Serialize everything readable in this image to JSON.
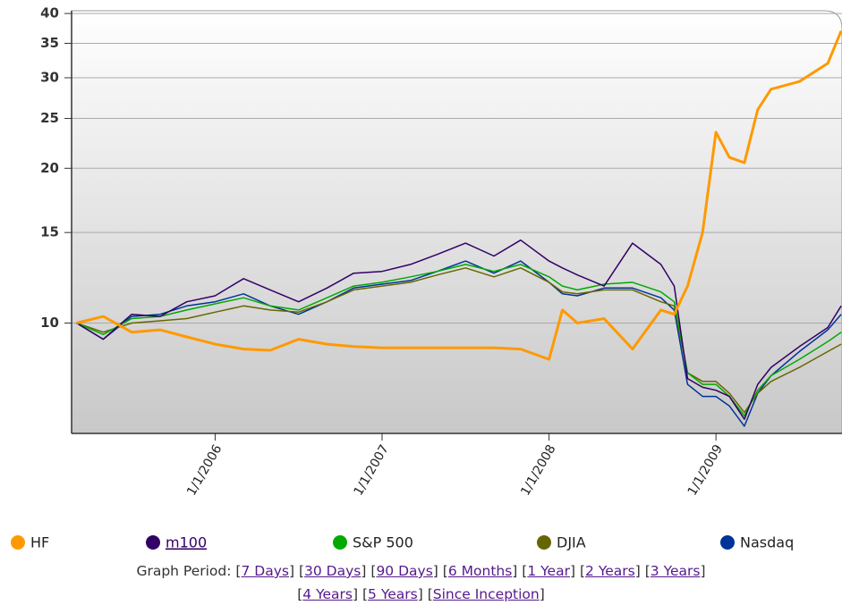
{
  "chart_data": {
    "type": "line",
    "log_scale": true,
    "grid": true,
    "x": [
      2005.17,
      2005.33,
      2005.5,
      2005.67,
      2005.83,
      2006.0,
      2006.17,
      2006.33,
      2006.5,
      2006.67,
      2006.83,
      2007.0,
      2007.17,
      2007.33,
      2007.5,
      2007.67,
      2007.83,
      2008.0,
      2008.08,
      2008.17,
      2008.33,
      2008.5,
      2008.67,
      2008.75,
      2008.83,
      2008.92,
      2009.0,
      2009.08,
      2009.17,
      2009.25,
      2009.33,
      2009.5,
      2009.67,
      2009.75
    ],
    "xlim": [
      2005.14,
      2009.755
    ],
    "xticks": [
      {
        "value": 2006,
        "label": "1/1/2006"
      },
      {
        "value": 2007,
        "label": "1/1/2007"
      },
      {
        "value": 2008,
        "label": "1/1/2008"
      },
      {
        "value": 2009,
        "label": "1/1/2009"
      }
    ],
    "ylim": [
      6.1,
      40.5
    ],
    "yticks": [
      10,
      15,
      20,
      25,
      30,
      35,
      40
    ],
    "series": [
      {
        "name": "HF",
        "color": "#ff9900",
        "values": [
          10.0,
          10.3,
          9.6,
          9.7,
          9.4,
          9.1,
          8.9,
          8.85,
          9.3,
          9.1,
          9.0,
          8.95,
          8.95,
          8.95,
          8.95,
          8.95,
          8.9,
          8.5,
          10.6,
          10.0,
          10.2,
          8.9,
          10.6,
          10.4,
          11.8,
          15.0,
          23.5,
          21.0,
          20.5,
          26.0,
          28.5,
          29.5,
          32.0,
          37.0
        ]
      },
      {
        "name": "m100",
        "color": "#330066",
        "link": true,
        "values": [
          10.0,
          9.3,
          10.4,
          10.3,
          11.0,
          11.3,
          12.2,
          11.6,
          11.0,
          11.7,
          12.5,
          12.6,
          13.0,
          13.6,
          14.3,
          13.5,
          14.5,
          13.2,
          12.8,
          12.4,
          11.8,
          14.3,
          13.0,
          11.8,
          7.8,
          7.5,
          7.4,
          7.2,
          6.5,
          7.6,
          8.2,
          9.0,
          9.8,
          10.8
        ]
      },
      {
        "name": "S&P 500",
        "color": "#00aa00",
        "values": [
          10.0,
          9.5,
          10.2,
          10.3,
          10.6,
          10.9,
          11.2,
          10.8,
          10.6,
          11.2,
          11.8,
          12.0,
          12.3,
          12.6,
          13.0,
          12.6,
          13.0,
          12.3,
          11.8,
          11.6,
          11.9,
          12.0,
          11.5,
          11.0,
          8.0,
          7.6,
          7.6,
          7.2,
          6.6,
          7.4,
          7.9,
          8.5,
          9.2,
          9.6
        ]
      },
      {
        "name": "DJIA",
        "color": "#666600",
        "values": [
          10.0,
          9.6,
          10.0,
          10.1,
          10.2,
          10.5,
          10.8,
          10.6,
          10.5,
          11.0,
          11.6,
          11.8,
          12.0,
          12.4,
          12.8,
          12.3,
          12.8,
          12.0,
          11.5,
          11.4,
          11.6,
          11.6,
          11.0,
          10.8,
          8.0,
          7.7,
          7.7,
          7.3,
          6.7,
          7.3,
          7.7,
          8.2,
          8.8,
          9.1
        ]
      },
      {
        "name": "Nasdaq",
        "color": "#003399",
        "values": [
          10.0,
          9.3,
          10.3,
          10.4,
          10.8,
          11.0,
          11.4,
          10.8,
          10.4,
          11.0,
          11.7,
          11.9,
          12.1,
          12.6,
          13.2,
          12.5,
          13.2,
          12.0,
          11.4,
          11.3,
          11.7,
          11.7,
          11.2,
          10.6,
          7.6,
          7.2,
          7.2,
          6.9,
          6.3,
          7.3,
          7.9,
          8.8,
          9.7,
          10.4
        ]
      }
    ],
    "period_label": "Graph Period:",
    "periods": [
      "7 Days",
      "30 Days",
      "90 Days",
      "6 Months",
      "1 Year",
      "2 Years",
      "3 Years",
      "4 Years",
      "5 Years",
      "Since Inception"
    ]
  }
}
